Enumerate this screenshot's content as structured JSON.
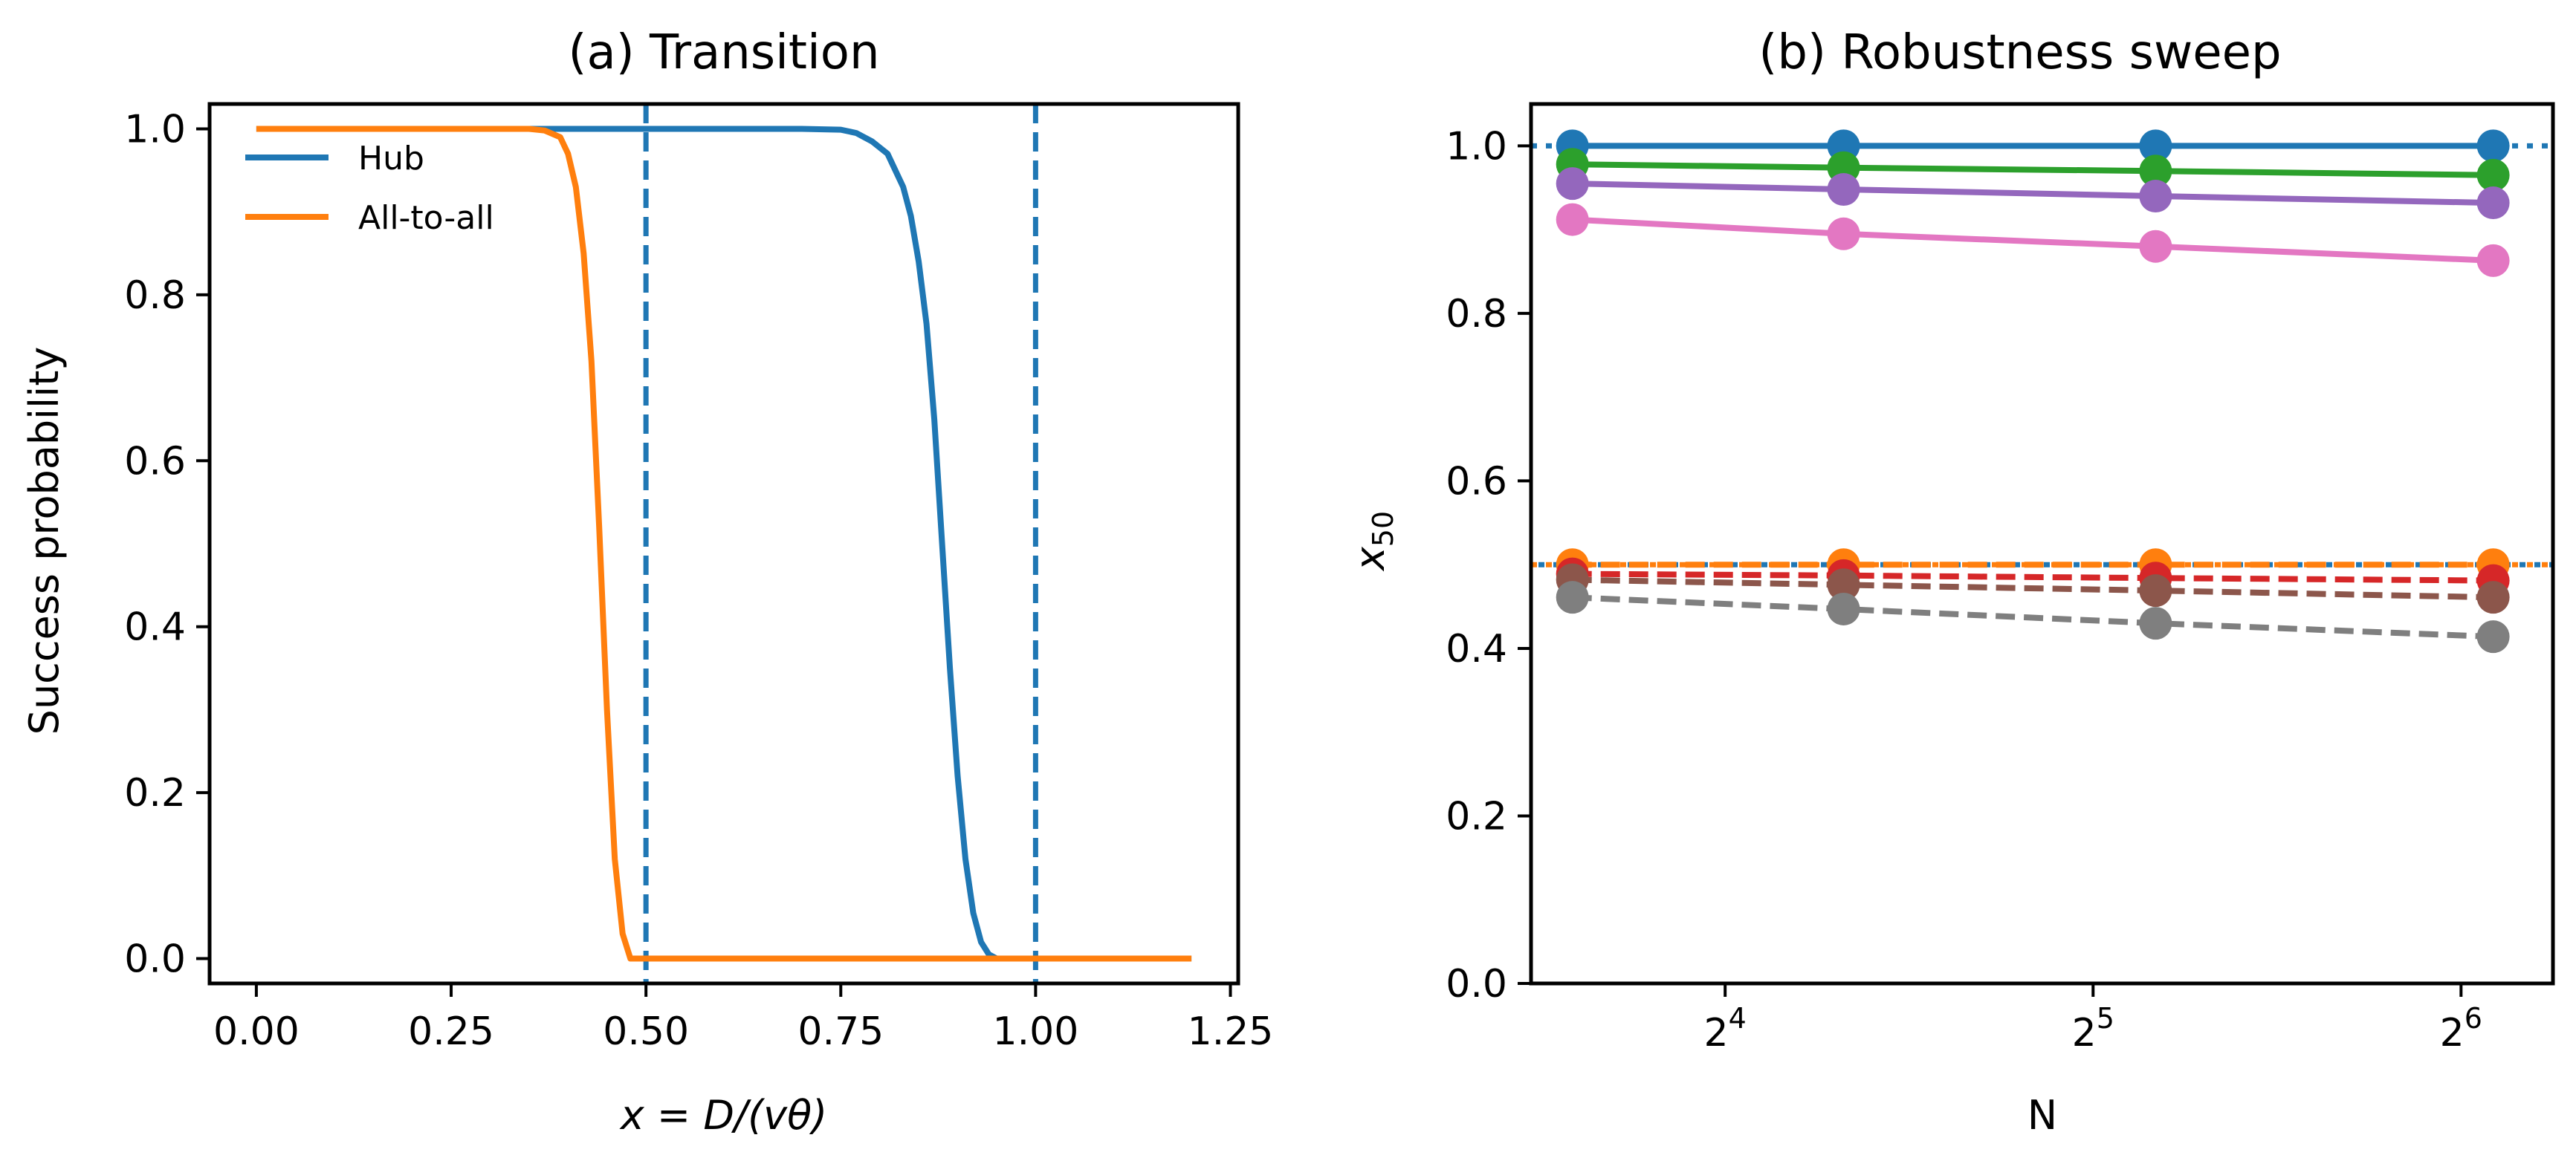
{
  "chart_data": [
    {
      "type": "line",
      "title": "(a) Transition",
      "xlabel": "x = D/(vθ)",
      "ylabel": "Success probability",
      "xlim": [
        -0.06,
        1.26
      ],
      "ylim": [
        -0.03,
        1.03
      ],
      "xticks": [
        0.0,
        0.25,
        0.5,
        0.75,
        1.0,
        1.25
      ],
      "xtick_labels": [
        "0.00",
        "0.25",
        "0.50",
        "0.75",
        "1.00",
        "1.25"
      ],
      "yticks": [
        0.0,
        0.2,
        0.4,
        0.6,
        0.8,
        1.0
      ],
      "ytick_labels": [
        "0.0",
        "0.2",
        "0.4",
        "0.6",
        "0.8",
        "1.0"
      ],
      "legend_position": "top-left",
      "vlines": [
        {
          "x": 0.5,
          "color": "#1f77b4",
          "style": "dashed"
        },
        {
          "x": 1.0,
          "color": "#1f77b4",
          "style": "dashed"
        }
      ],
      "series": [
        {
          "name": "Hub",
          "color": "#1f77b4",
          "x": [
            0.0,
            0.25,
            0.5,
            0.7,
            0.75,
            0.77,
            0.79,
            0.81,
            0.83,
            0.84,
            0.85,
            0.86,
            0.87,
            0.88,
            0.89,
            0.9,
            0.91,
            0.92,
            0.93,
            0.94,
            0.95,
            1.0,
            1.2
          ],
          "y": [
            1.0,
            1.0,
            1.0,
            1.0,
            0.999,
            0.995,
            0.985,
            0.97,
            0.93,
            0.895,
            0.84,
            0.765,
            0.65,
            0.5,
            0.35,
            0.22,
            0.12,
            0.055,
            0.02,
            0.005,
            0.0,
            0.0,
            0.0
          ]
        },
        {
          "name": "All-to-all",
          "color": "#ff7f0e",
          "x": [
            0.0,
            0.25,
            0.35,
            0.37,
            0.39,
            0.4,
            0.41,
            0.42,
            0.43,
            0.44,
            0.45,
            0.46,
            0.47,
            0.48,
            0.5,
            1.0,
            1.2
          ],
          "y": [
            1.0,
            1.0,
            1.0,
            0.998,
            0.99,
            0.97,
            0.93,
            0.85,
            0.72,
            0.52,
            0.3,
            0.12,
            0.03,
            0.0,
            0.0,
            0.0,
            0.0
          ]
        }
      ]
    },
    {
      "type": "line",
      "title": "(b) Robustness sweep",
      "xlabel": "N",
      "ylabel": "x50",
      "xscale": "log2",
      "xlim": [
        11.1,
        76.1
      ],
      "ylim": [
        0.0,
        1.05
      ],
      "xticks": [
        16,
        32,
        64
      ],
      "xtick_labels": [
        {
          "base": "2",
          "exp": "4"
        },
        {
          "base": "2",
          "exp": "5"
        },
        {
          "base": "2",
          "exp": "6"
        }
      ],
      "yticks": [
        0.0,
        0.2,
        0.4,
        0.6,
        0.8,
        1.0
      ],
      "ytick_labels": [
        "0.0",
        "0.2",
        "0.4",
        "0.6",
        "0.8",
        "1.0"
      ],
      "hlines": [
        {
          "y": 1.0,
          "color": "#1f77b4",
          "style": "dotted"
        },
        {
          "y": 0.5,
          "color": "#1f77b4",
          "style": "dotted"
        },
        {
          "y": 0.5,
          "color": "#ff7f0e",
          "style": "dotted"
        }
      ],
      "series": [
        {
          "color": "#1f77b4",
          "style": "solid",
          "x": [
            12,
            20,
            36,
            68
          ],
          "y": [
            1.0,
            1.0,
            1.0,
            1.0
          ]
        },
        {
          "color": "#2ca02c",
          "style": "solid",
          "x": [
            12,
            20,
            36,
            68
          ],
          "y": [
            0.978,
            0.974,
            0.97,
            0.965
          ]
        },
        {
          "color": "#9467bd",
          "style": "solid",
          "x": [
            12,
            20,
            36,
            68
          ],
          "y": [
            0.955,
            0.948,
            0.94,
            0.932
          ]
        },
        {
          "color": "#e377c2",
          "style": "solid",
          "x": [
            12,
            20,
            36,
            68
          ],
          "y": [
            0.912,
            0.895,
            0.88,
            0.863
          ]
        },
        {
          "color": "#ff7f0e",
          "style": "dashed",
          "x": [
            12,
            20,
            36,
            68
          ],
          "y": [
            0.5,
            0.5,
            0.5,
            0.5
          ]
        },
        {
          "color": "#d62728",
          "style": "dashed",
          "x": [
            12,
            20,
            36,
            68
          ],
          "y": [
            0.489,
            0.487,
            0.484,
            0.481
          ]
        },
        {
          "color": "#8c564b",
          "style": "dashed",
          "x": [
            12,
            20,
            36,
            68
          ],
          "y": [
            0.482,
            0.476,
            0.469,
            0.461
          ]
        },
        {
          "color": "#7f7f7f",
          "style": "dashed",
          "x": [
            12,
            20,
            36,
            68
          ],
          "y": [
            0.461,
            0.447,
            0.43,
            0.414
          ]
        }
      ]
    }
  ]
}
